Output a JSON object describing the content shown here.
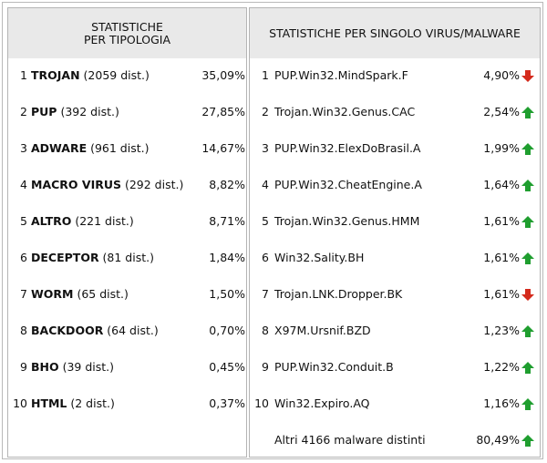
{
  "left_panel": {
    "title_line1": "STATISTICHE",
    "title_line2": "PER TIPOLOGIA",
    "rows": [
      {
        "rank": "1",
        "name": "TROJAN",
        "count": " (2059 dist.)",
        "pct": "35,09%"
      },
      {
        "rank": "2",
        "name": "PUP",
        "count": " (392 dist.)",
        "pct": "27,85%"
      },
      {
        "rank": "3",
        "name": "ADWARE",
        "count": " (961 dist.)",
        "pct": "14,67%"
      },
      {
        "rank": "4",
        "name": "MACRO VIRUS",
        "count": " (292 dist.)",
        "pct": "8,82%"
      },
      {
        "rank": "5",
        "name": "ALTRO",
        "count": " (221 dist.)",
        "pct": "8,71%"
      },
      {
        "rank": "6",
        "name": "DECEPTOR",
        "count": " (81 dist.)",
        "pct": "1,84%"
      },
      {
        "rank": "7",
        "name": "WORM",
        "count": " (65 dist.)",
        "pct": "1,50%"
      },
      {
        "rank": "8",
        "name": "BACKDOOR",
        "count": " (64 dist.)",
        "pct": "0,70%"
      },
      {
        "rank": "9",
        "name": "BHO",
        "count": " (39 dist.)",
        "pct": "0,45%"
      },
      {
        "rank": "10",
        "name": "HTML",
        "count": " (2 dist.)",
        "pct": "0,37%"
      }
    ]
  },
  "right_panel": {
    "title": "STATISTICHE PER SINGOLO VIRUS/MALWARE",
    "rows": [
      {
        "rank": "1",
        "name": "PUP.Win32.MindSpark.F",
        "pct": "4,90%",
        "trend": "down"
      },
      {
        "rank": "2",
        "name": "Trojan.Win32.Genus.CAC",
        "pct": "2,54%",
        "trend": "up"
      },
      {
        "rank": "3",
        "name": "PUP.Win32.ElexDoBrasil.A",
        "pct": "1,99%",
        "trend": "up"
      },
      {
        "rank": "4",
        "name": "PUP.Win32.CheatEngine.A",
        "pct": "1,64%",
        "trend": "up"
      },
      {
        "rank": "5",
        "name": "Trojan.Win32.Genus.HMM",
        "pct": "1,61%",
        "trend": "up"
      },
      {
        "rank": "6",
        "name": "Win32.Sality.BH",
        "pct": "1,61%",
        "trend": "up"
      },
      {
        "rank": "7",
        "name": "Trojan.LNK.Dropper.BK",
        "pct": "1,61%",
        "trend": "down"
      },
      {
        "rank": "8",
        "name": "X97M.Ursnif.BZD",
        "pct": "1,23%",
        "trend": "up"
      },
      {
        "rank": "9",
        "name": "PUP.Win32.Conduit.B",
        "pct": "1,22%",
        "trend": "up"
      },
      {
        "rank": "10",
        "name": "Win32.Expiro.AQ",
        "pct": "1,16%",
        "trend": "up"
      }
    ],
    "others": {
      "label": "Altri 4166 malware distinti",
      "pct": "80,49%",
      "trend": "up"
    }
  },
  "colors": {
    "up": "#1f9e2f",
    "down": "#d42a1c",
    "header_bg": "#e9e9e9"
  },
  "icons": {
    "up": "arrow-up-icon",
    "down": "arrow-down-icon"
  }
}
